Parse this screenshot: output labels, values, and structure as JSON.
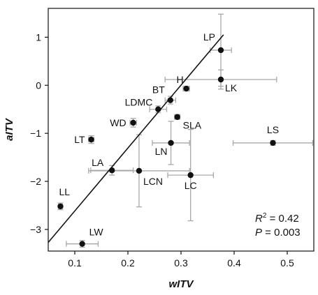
{
  "chart_data": {
    "type": "scatter",
    "xlabel": "wITV",
    "ylabel": "aITV",
    "xlim": [
      0.05,
      0.55
    ],
    "ylim": [
      -3.45,
      1.6
    ],
    "xticks": [
      0.1,
      0.2,
      0.3,
      0.4,
      0.5
    ],
    "yticks": [
      -3,
      -2,
      -1,
      0,
      1
    ],
    "points": [
      {
        "label": "LP",
        "x": 0.375,
        "y": 0.73,
        "xerr": 0.02,
        "yerr": 0.75
      },
      {
        "label": "LK",
        "x": 0.375,
        "y": 0.12,
        "xerr": 0.105,
        "yerr": 0.2
      },
      {
        "label": "H",
        "x": 0.31,
        "y": -0.07,
        "xerr": 0.006,
        "yerr": 0.05
      },
      {
        "label": "BT",
        "x": 0.28,
        "y": -0.31,
        "xerr": 0.01,
        "yerr": 0.08
      },
      {
        "label": "LDMC",
        "x": 0.257,
        "y": -0.5,
        "xerr": 0.016,
        "yerr": 0.07
      },
      {
        "label": "SLA",
        "x": 0.293,
        "y": -0.66,
        "xerr": 0.005,
        "yerr": 0.05
      },
      {
        "label": "WD",
        "x": 0.21,
        "y": -0.78,
        "xerr": 0.006,
        "yerr": 0.09
      },
      {
        "label": "LS",
        "x": 0.473,
        "y": -1.2,
        "xerr": 0.075,
        "yerr": 0.05
      },
      {
        "label": "LT",
        "x": 0.131,
        "y": -1.13,
        "xerr": 0.005,
        "yerr": 0.08
      },
      {
        "label": "LN",
        "x": 0.281,
        "y": -1.2,
        "xerr": 0.035,
        "yerr": 0.45
      },
      {
        "label": "LA",
        "x": 0.17,
        "y": -1.77,
        "xerr": 0.04,
        "yerr": 0.1
      },
      {
        "label": "LCN",
        "x": 0.221,
        "y": -1.78,
        "xerr": 0.095,
        "yerr": 0.75
      },
      {
        "label": "LC",
        "x": 0.318,
        "y": -1.87,
        "xerr": 0.043,
        "yerr": 0.95
      },
      {
        "label": "LL",
        "x": 0.073,
        "y": -2.52,
        "xerr": 0.004,
        "yerr": 0.07
      },
      {
        "label": "LW",
        "x": 0.114,
        "y": -3.3,
        "xerr": 0.03,
        "yerr": 0.07
      }
    ],
    "fit_line": {
      "x": [
        0.05,
        0.38
      ],
      "y": [
        -3.27,
        1.05
      ]
    },
    "stats": {
      "r2": "R² = 0.42",
      "p": "P = 0.003"
    }
  }
}
